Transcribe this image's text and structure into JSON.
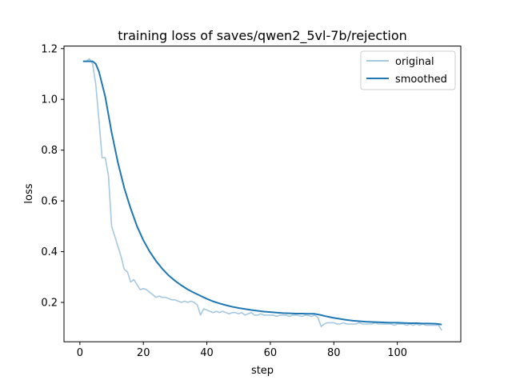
{
  "chart_data": {
    "type": "line",
    "title": "training loss of saves/qwen2_5vl-7b/rejection",
    "xlabel": "step",
    "ylabel": "loss",
    "xlim": [
      -5,
      120
    ],
    "ylim": [
      0.045,
      1.21
    ],
    "x_ticks": [
      0,
      20,
      40,
      60,
      80,
      100
    ],
    "y_ticks": [
      0.2,
      0.4,
      0.6,
      0.8,
      1.0,
      1.2
    ],
    "x_tick_labels": [
      "0",
      "20",
      "40",
      "60",
      "80",
      "100"
    ],
    "y_tick_labels": [
      "0.2",
      "0.4",
      "0.6",
      "0.8",
      "1.0",
      "1.2"
    ],
    "grid": false,
    "legend_position": "top-right",
    "series": [
      {
        "name": "original",
        "color": "#a6c8e0",
        "x": [
          1,
          2,
          3,
          4,
          5,
          6,
          7,
          8,
          9,
          10,
          11,
          12,
          13,
          14,
          15,
          16,
          17,
          18,
          19,
          20,
          21,
          22,
          23,
          24,
          25,
          26,
          27,
          28,
          29,
          30,
          31,
          32,
          33,
          34,
          35,
          36,
          37,
          38,
          39,
          40,
          41,
          42,
          43,
          44,
          45,
          46,
          47,
          48,
          49,
          50,
          51,
          52,
          53,
          54,
          55,
          56,
          57,
          58,
          59,
          60,
          61,
          62,
          63,
          64,
          65,
          66,
          67,
          68,
          69,
          70,
          71,
          72,
          73,
          74,
          75,
          76,
          77,
          78,
          79,
          80,
          81,
          82,
          83,
          84,
          85,
          86,
          87,
          88,
          89,
          90,
          91,
          92,
          93,
          94,
          95,
          96,
          97,
          98,
          99,
          100,
          101,
          102,
          103,
          104,
          105,
          106,
          107,
          108,
          109,
          110,
          111,
          112,
          113,
          114
        ],
        "values": [
          1.15,
          1.15,
          1.16,
          1.14,
          1.06,
          0.92,
          0.77,
          0.77,
          0.7,
          0.5,
          0.46,
          0.42,
          0.38,
          0.33,
          0.32,
          0.28,
          0.29,
          0.27,
          0.25,
          0.255,
          0.25,
          0.24,
          0.23,
          0.22,
          0.225,
          0.22,
          0.22,
          0.215,
          0.21,
          0.21,
          0.205,
          0.2,
          0.205,
          0.2,
          0.205,
          0.2,
          0.19,
          0.15,
          0.175,
          0.17,
          0.165,
          0.16,
          0.165,
          0.16,
          0.165,
          0.16,
          0.155,
          0.16,
          0.16,
          0.155,
          0.16,
          0.15,
          0.155,
          0.16,
          0.15,
          0.15,
          0.155,
          0.15,
          0.15,
          0.15,
          0.15,
          0.145,
          0.15,
          0.15,
          0.15,
          0.145,
          0.15,
          0.15,
          0.148,
          0.145,
          0.15,
          0.148,
          0.145,
          0.15,
          0.14,
          0.105,
          0.115,
          0.12,
          0.12,
          0.12,
          0.115,
          0.115,
          0.12,
          0.115,
          0.115,
          0.115,
          0.115,
          0.12,
          0.115,
          0.115,
          0.115,
          0.115,
          0.12,
          0.115,
          0.115,
          0.115,
          0.115,
          0.115,
          0.11,
          0.115,
          0.115,
          0.115,
          0.11,
          0.115,
          0.11,
          0.115,
          0.11,
          0.115,
          0.11,
          0.11,
          0.11,
          0.11,
          0.11,
          0.09
        ]
      },
      {
        "name": "smoothed",
        "color": "#1f77b4",
        "x": [
          1,
          2,
          3,
          4,
          5,
          6,
          7,
          8,
          9,
          10,
          12,
          14,
          16,
          18,
          20,
          22,
          24,
          26,
          28,
          30,
          32,
          34,
          36,
          38,
          40,
          42,
          44,
          46,
          48,
          50,
          52,
          54,
          56,
          58,
          60,
          62,
          64,
          66,
          68,
          70,
          72,
          74,
          76,
          78,
          80,
          82,
          84,
          86,
          88,
          90,
          92,
          94,
          96,
          98,
          100,
          102,
          104,
          106,
          108,
          110,
          112,
          114
        ],
        "values": [
          1.15,
          1.15,
          1.15,
          1.15,
          1.14,
          1.11,
          1.06,
          1.01,
          0.94,
          0.87,
          0.75,
          0.65,
          0.57,
          0.5,
          0.445,
          0.4,
          0.363,
          0.332,
          0.306,
          0.285,
          0.267,
          0.251,
          0.238,
          0.226,
          0.214,
          0.204,
          0.196,
          0.189,
          0.183,
          0.178,
          0.174,
          0.17,
          0.167,
          0.164,
          0.162,
          0.16,
          0.158,
          0.157,
          0.156,
          0.156,
          0.155,
          0.155,
          0.15,
          0.144,
          0.139,
          0.135,
          0.131,
          0.128,
          0.126,
          0.124,
          0.123,
          0.122,
          0.121,
          0.12,
          0.12,
          0.119,
          0.118,
          0.118,
          0.117,
          0.117,
          0.116,
          0.113
        ]
      }
    ]
  }
}
